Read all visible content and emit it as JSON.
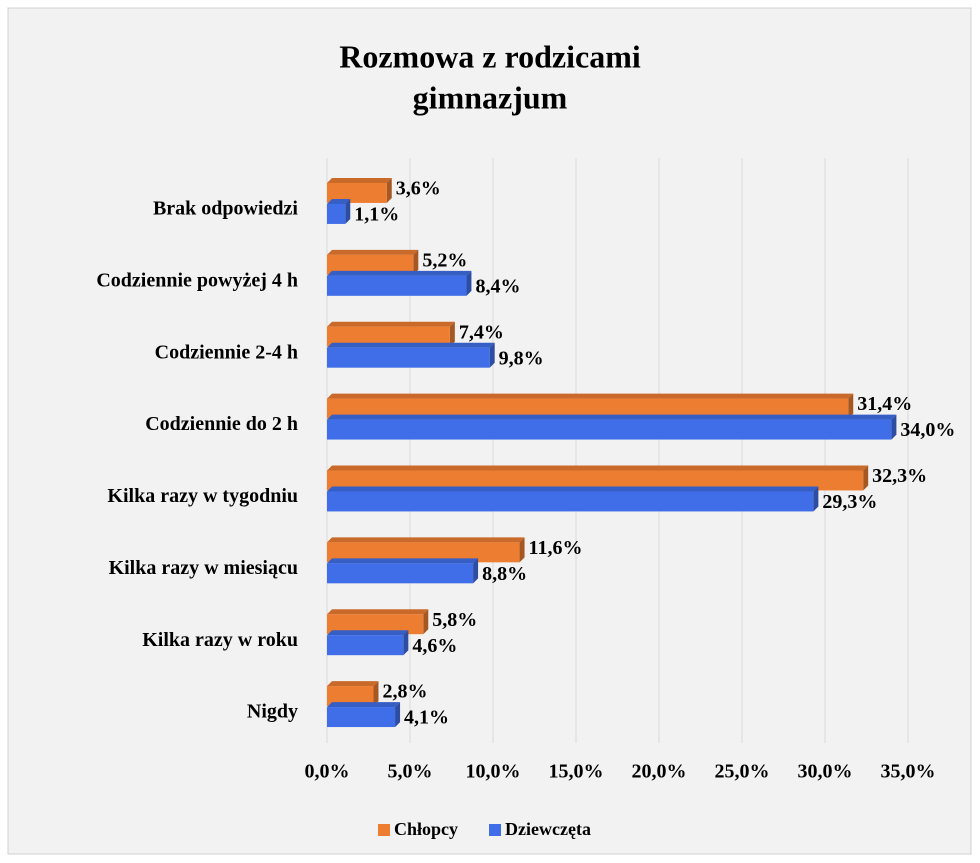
{
  "chart_data": {
    "type": "bar",
    "orientation": "horizontal",
    "title": "Rozmowa z rodzicami",
    "subtitle": "gimnazjum",
    "categories": [
      "Brak odpowiedzi",
      "Codziennie powyżej 4 h",
      "Codziennie 2-4 h",
      "Codziennie do 2 h",
      "Kilka razy w tygodniu",
      "Kilka razy w miesiącu",
      "Kilka razy w roku",
      "Nigdy"
    ],
    "series": [
      {
        "name": "Chłopcy",
        "color": "#ed7d31",
        "values": [
          3.6,
          5.2,
          7.4,
          31.4,
          32.3,
          11.6,
          5.8,
          2.8
        ],
        "value_labels": [
          "3,6%",
          "5,2%",
          "7,4%",
          "31,4%",
          "32,3%",
          "11,6%",
          "5,8%",
          "2,8%"
        ]
      },
      {
        "name": "Dziewczęta",
        "color": "#3f6ee8",
        "values": [
          1.1,
          8.4,
          9.8,
          34.0,
          29.3,
          8.8,
          4.6,
          4.1
        ],
        "value_labels": [
          "1,1%",
          "8,4%",
          "9,8%",
          "34,0%",
          "29,3%",
          "8,8%",
          "4,6%",
          "4,1%"
        ]
      }
    ],
    "xlim": [
      0,
      35
    ],
    "xticks": [
      {
        "value": 0,
        "label": "0,0%"
      },
      {
        "value": 5,
        "label": "5,0%"
      },
      {
        "value": 10,
        "label": "10,0%"
      },
      {
        "value": 15,
        "label": "15,0%"
      },
      {
        "value": 20,
        "label": "20,0%"
      },
      {
        "value": 25,
        "label": "25,0%"
      },
      {
        "value": 30,
        "label": "30,0%"
      },
      {
        "value": 35,
        "label": "35,0%"
      }
    ],
    "grid": true,
    "legend": "bottom"
  }
}
